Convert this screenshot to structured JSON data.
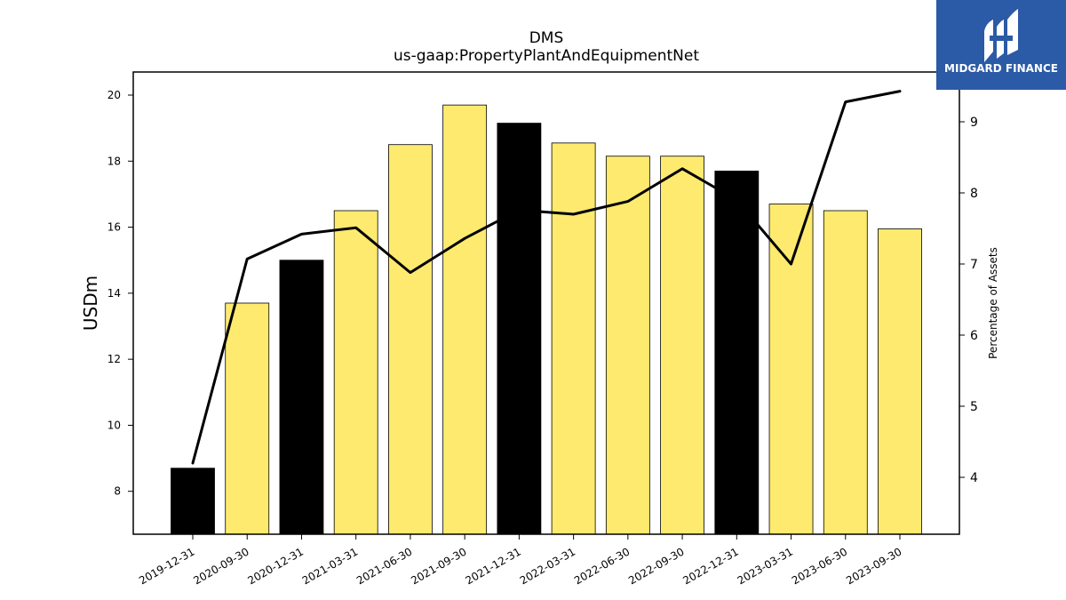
{
  "brand": {
    "name": "MIDGARD FINANCE",
    "color": "#2b5aa6"
  },
  "chart_data": {
    "type": "bar",
    "title": "DMS",
    "subtitle": "us-gaap:PropertyPlantAndEquipmentNet",
    "ylabel": "USDm",
    "y2label": "Percentage of Assets",
    "ylim": [
      6.7,
      20.7
    ],
    "y2lim": [
      3.2,
      9.7
    ],
    "yticks": [
      8,
      10,
      12,
      14,
      16,
      18,
      20
    ],
    "y2ticks": [
      4,
      5,
      6,
      7,
      8,
      9
    ],
    "categories": [
      "2019-12-31",
      "2020-09-30",
      "2020-12-31",
      "2021-03-31",
      "2021-06-30",
      "2021-09-30",
      "2021-12-31",
      "2022-03-31",
      "2022-06-30",
      "2022-09-30",
      "2022-12-31",
      "2023-03-31",
      "2023-06-30",
      "2023-09-30"
    ],
    "series": [
      {
        "type": "bar",
        "axis": "left",
        "values": [
          8.7,
          13.7,
          15.0,
          16.5,
          18.5,
          19.7,
          19.15,
          18.55,
          18.15,
          18.15,
          17.7,
          16.7,
          16.5,
          15.95
        ],
        "colors": [
          "#000000",
          "#fdea6f",
          "#000000",
          "#fdea6f",
          "#fdea6f",
          "#fdea6f",
          "#000000",
          "#fdea6f",
          "#fdea6f",
          "#fdea6f",
          "#000000",
          "#fdea6f",
          "#fdea6f",
          "#fdea6f"
        ]
      },
      {
        "type": "line",
        "axis": "right",
        "values": [
          4.2,
          7.07,
          7.42,
          7.51,
          6.88,
          7.36,
          7.76,
          7.7,
          7.88,
          8.34,
          7.9,
          7.0,
          9.28,
          9.43
        ],
        "color": "#000000"
      }
    ],
    "grid": false,
    "legend": "none"
  }
}
